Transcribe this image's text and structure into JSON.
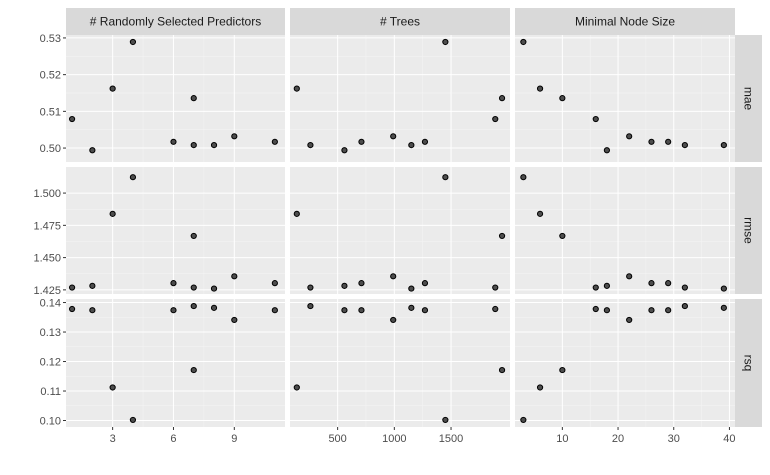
{
  "chart_data": {
    "type": "scatter",
    "facet_columns": [
      {
        "label": "# Randomly Selected Predictors",
        "xlim": [
          0.7,
          11.5
        ],
        "xticks": [
          3,
          6,
          9
        ]
      },
      {
        "label": "# Trees",
        "xlim": [
          80,
          2020
        ],
        "xticks": [
          500,
          1000,
          1500
        ]
      },
      {
        "label": "Minimal Node Size",
        "xlim": [
          1.5,
          41
        ],
        "xticks": [
          10,
          20,
          30,
          40
        ]
      }
    ],
    "facet_rows": [
      {
        "label": "mae",
        "ylim": [
          0.4962,
          0.5308
        ],
        "yticks": [
          0.5,
          0.51,
          0.52,
          0.53
        ],
        "ytick_labels": [
          "0.50",
          "0.51",
          "0.52",
          "0.53"
        ]
      },
      {
        "label": "rmse",
        "ylim": [
          1.4218,
          1.5202
        ],
        "yticks": [
          1.425,
          1.45,
          1.475,
          1.5
        ],
        "ytick_labels": [
          "1.425",
          "1.450",
          "1.475",
          "1.500"
        ]
      },
      {
        "label": "rsq",
        "ylim": [
          0.0978,
          0.1412
        ],
        "yticks": [
          0.1,
          0.11,
          0.12,
          0.13,
          0.14
        ],
        "ytick_labels": [
          "0.10",
          "0.11",
          "0.12",
          "0.13",
          "0.14"
        ]
      }
    ],
    "points": [
      {
        "mtry": 1,
        "trees": 1890,
        "min_n": 16,
        "mae": 0.5079,
        "rmse": 1.4268,
        "rsq": 0.1378
      },
      {
        "mtry": 2,
        "trees": 560,
        "min_n": 18,
        "mae": 0.4994,
        "rmse": 1.4281,
        "rsq": 0.1374
      },
      {
        "mtry": 3,
        "trees": 140,
        "min_n": 6,
        "mae": 0.5162,
        "rmse": 1.4839,
        "rsq": 0.1112
      },
      {
        "mtry": 4,
        "trees": 1450,
        "min_n": 3,
        "mae": 0.5289,
        "rmse": 1.5123,
        "rsq": 0.1002
      },
      {
        "mtry": 6,
        "trees": 1270,
        "min_n": 26,
        "mae": 0.5017,
        "rmse": 1.4302,
        "rsq": 0.1374
      },
      {
        "mtry": 7,
        "trees": 1950,
        "min_n": 10,
        "mae": 0.5136,
        "rmse": 1.4668,
        "rsq": 0.1171
      },
      {
        "mtry": 7,
        "trees": 260,
        "min_n": 32,
        "mae": 0.5008,
        "rmse": 1.4268,
        "rsq": 0.1388
      },
      {
        "mtry": 8,
        "trees": 1150,
        "min_n": 39,
        "mae": 0.5008,
        "rmse": 1.426,
        "rsq": 0.1382
      },
      {
        "mtry": 9,
        "trees": 990,
        "min_n": 22,
        "mae": 0.5032,
        "rmse": 1.4355,
        "rsq": 0.1341
      },
      {
        "mtry": 11,
        "trees": 710,
        "min_n": 29,
        "mae": 0.5017,
        "rmse": 1.4302,
        "rsq": 0.1374
      }
    ],
    "grid": true,
    "legend": "none"
  },
  "colors": {
    "panel_background": "#ebebeb",
    "grid_major": "#ffffff",
    "grid_minor": "#f5f5f5",
    "strip_background": "#d9d9d9",
    "point_fill": "#4d4d4d",
    "point_stroke": "#000000",
    "tick_text": "#4d4d4d",
    "strip_text": "#1a1a1a"
  }
}
